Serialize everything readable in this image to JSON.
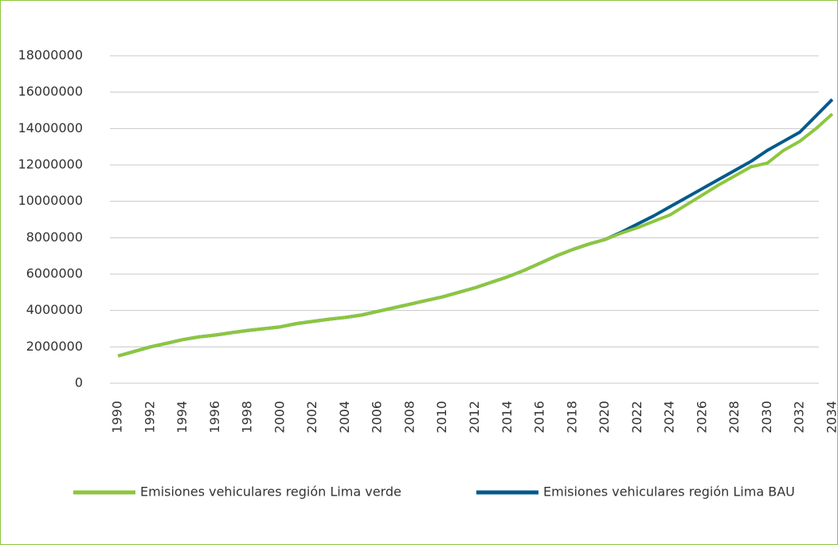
{
  "chart_data": {
    "type": "line",
    "categories": [
      "1990",
      null,
      "1992",
      null,
      "1994",
      null,
      "1996",
      null,
      "1998",
      null,
      "2000",
      null,
      "2002",
      null,
      "2004",
      null,
      "2006",
      null,
      "2008",
      null,
      "2010",
      null,
      "2012",
      null,
      "2014",
      null,
      "2016",
      null,
      "2018",
      null,
      "2020",
      null,
      "2022",
      null,
      "2024",
      null,
      "2026",
      null,
      "2028",
      null,
      "2030",
      null,
      "2032",
      null,
      "2034"
    ],
    "series": [
      {
        "name": "Emisiones vehiculares región Lima verde",
        "color": "#8dc63f",
        "values": [
          1500000,
          1750000,
          2000000,
          2200000,
          2400000,
          2550000,
          2650000,
          2780000,
          2900000,
          3000000,
          3100000,
          3280000,
          3400000,
          3520000,
          3620000,
          3750000,
          3950000,
          4150000,
          4350000,
          4550000,
          4750000,
          5000000,
          5250000,
          5550000,
          5850000,
          6200000,
          6600000,
          7000000,
          7350000,
          7650000,
          7900000,
          8250000,
          8550000,
          8900000,
          9250000,
          9800000,
          10350000,
          10900000,
          11400000,
          11900000,
          12100000,
          12800000,
          13300000,
          14000000,
          14800000
        ]
      },
      {
        "name": "Emisiones vehiculares región Lima BAU",
        "color": "#005a8c",
        "values": [
          1500000,
          1750000,
          2000000,
          2200000,
          2400000,
          2550000,
          2650000,
          2780000,
          2900000,
          3000000,
          3100000,
          3280000,
          3400000,
          3520000,
          3620000,
          3750000,
          3950000,
          4150000,
          4350000,
          4550000,
          4750000,
          5000000,
          5250000,
          5550000,
          5850000,
          6200000,
          6600000,
          7000000,
          7350000,
          7650000,
          7900000,
          8300000,
          8750000,
          9200000,
          9700000,
          10200000,
          10700000,
          11200000,
          11700000,
          12200000,
          12800000,
          13300000,
          13800000,
          14700000,
          15600000
        ]
      }
    ],
    "ylim": [
      0,
      18000000
    ],
    "yticks": [
      0,
      2000000,
      4000000,
      6000000,
      8000000,
      10000000,
      12000000,
      14000000,
      16000000,
      18000000
    ],
    "grid": true
  }
}
